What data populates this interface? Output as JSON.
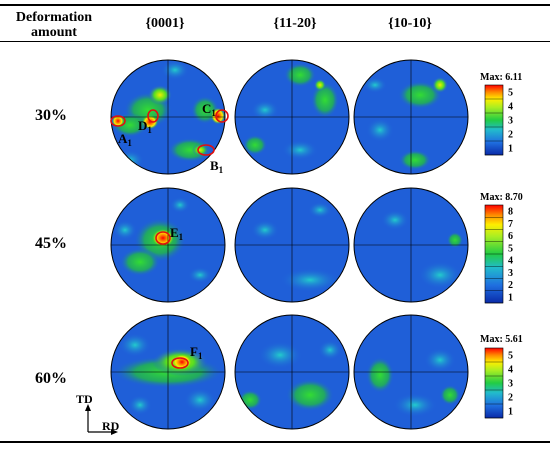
{
  "header": {
    "col0_line1": "Deformation",
    "col0_line2": "amount",
    "col1": "{0001}",
    "col2": "{11-20}",
    "col3": "{10-10}"
  },
  "rows": [
    {
      "label": "30%",
      "max_label": "Max:",
      "max_value": "6.11",
      "ticks": [
        "5",
        "4",
        "3",
        "2",
        "1"
      ],
      "annotations": [
        {
          "main": "A",
          "sub": "1"
        },
        {
          "main": "D",
          "sub": "1"
        },
        {
          "main": "C",
          "sub": "1"
        },
        {
          "main": "B",
          "sub": "1"
        }
      ]
    },
    {
      "label": "45%",
      "max_label": "Max:",
      "max_value": "8.70",
      "ticks": [
        "8",
        "7",
        "6",
        "5",
        "4",
        "3",
        "2",
        "1"
      ],
      "annotations": [
        {
          "main": "E",
          "sub": "1"
        }
      ]
    },
    {
      "label": "60%",
      "max_label": "Max:",
      "max_value": "5.61",
      "ticks": [
        "5",
        "4",
        "3",
        "2",
        "1"
      ],
      "annotations": [
        {
          "main": "F",
          "sub": "1"
        }
      ]
    }
  ],
  "axes": {
    "td": "TD",
    "rd": "RD"
  }
}
